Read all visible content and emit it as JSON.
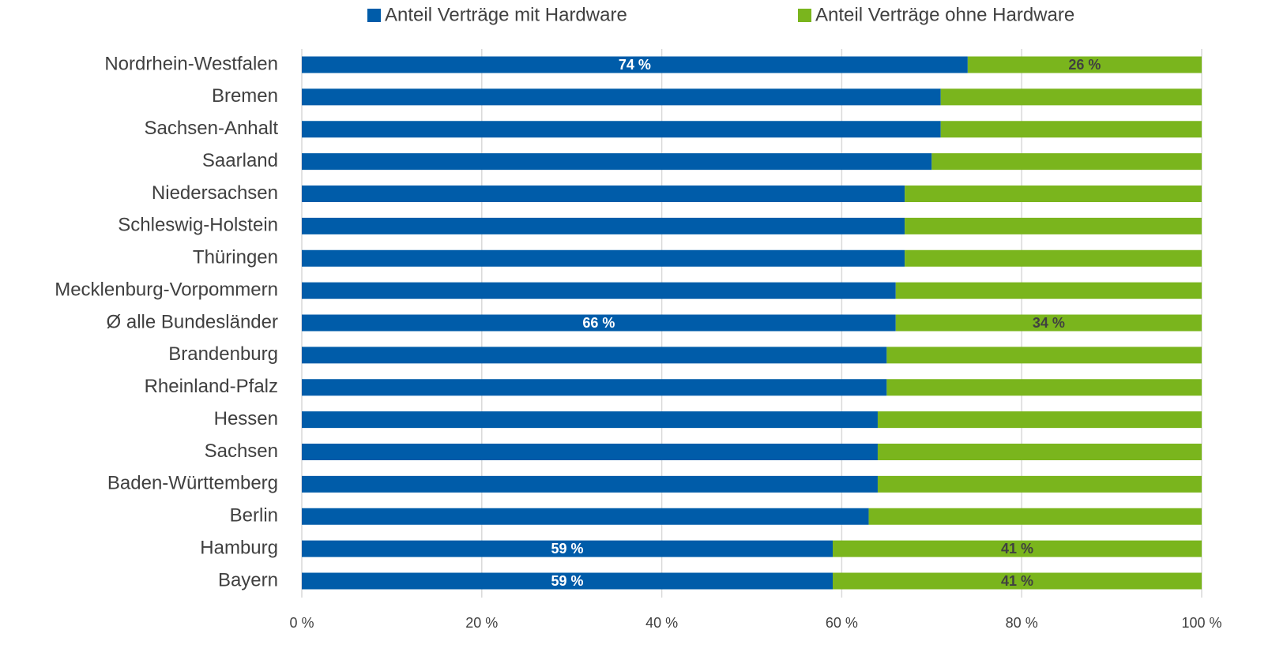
{
  "chart_data": {
    "type": "stacked_bar_horizontal",
    "categories": [
      "Nordrhein-Westfalen",
      "Bremen",
      "Sachsen-Anhalt",
      "Saarland",
      "Niedersachsen",
      "Schleswig-Holstein",
      "Thüringen",
      "Mecklenburg-Vorpommern",
      "Ø alle Bundesländer",
      "Brandenburg",
      "Rheinland-Pfalz",
      "Hessen",
      "Sachsen",
      "Baden-Württemberg",
      "Berlin",
      "Hamburg",
      "Bayern"
    ],
    "series": [
      {
        "name": "Anteil Verträge mit Hardware",
        "color": "#005ca9",
        "values": [
          74,
          71,
          71,
          70,
          67,
          67,
          67,
          66,
          66,
          65,
          65,
          64,
          64,
          64,
          63,
          59,
          59
        ],
        "value_labels": [
          "74 %",
          null,
          null,
          null,
          null,
          null,
          null,
          null,
          "66 %",
          null,
          null,
          null,
          null,
          null,
          null,
          "59 %",
          "59 %"
        ]
      },
      {
        "name": "Anteil Verträge ohne Hardware",
        "color": "#7ab51d",
        "values": [
          26,
          29,
          29,
          30,
          33,
          33,
          33,
          34,
          34,
          35,
          35,
          36,
          36,
          36,
          37,
          41,
          41
        ],
        "value_labels": [
          "26 %",
          null,
          null,
          null,
          null,
          null,
          null,
          null,
          "34 %",
          null,
          null,
          null,
          null,
          null,
          null,
          "41 %",
          "41 %"
        ]
      }
    ],
    "xlim": [
      0,
      100
    ],
    "xticks": [
      {
        "value": 0,
        "label": "0 %"
      },
      {
        "value": 20,
        "label": "20 %"
      },
      {
        "value": 40,
        "label": "40 %"
      },
      {
        "value": 60,
        "label": "60 %"
      },
      {
        "value": 80,
        "label": "80 %"
      },
      {
        "value": 100,
        "label": "100 %"
      }
    ],
    "grid": true,
    "legend": "top"
  }
}
